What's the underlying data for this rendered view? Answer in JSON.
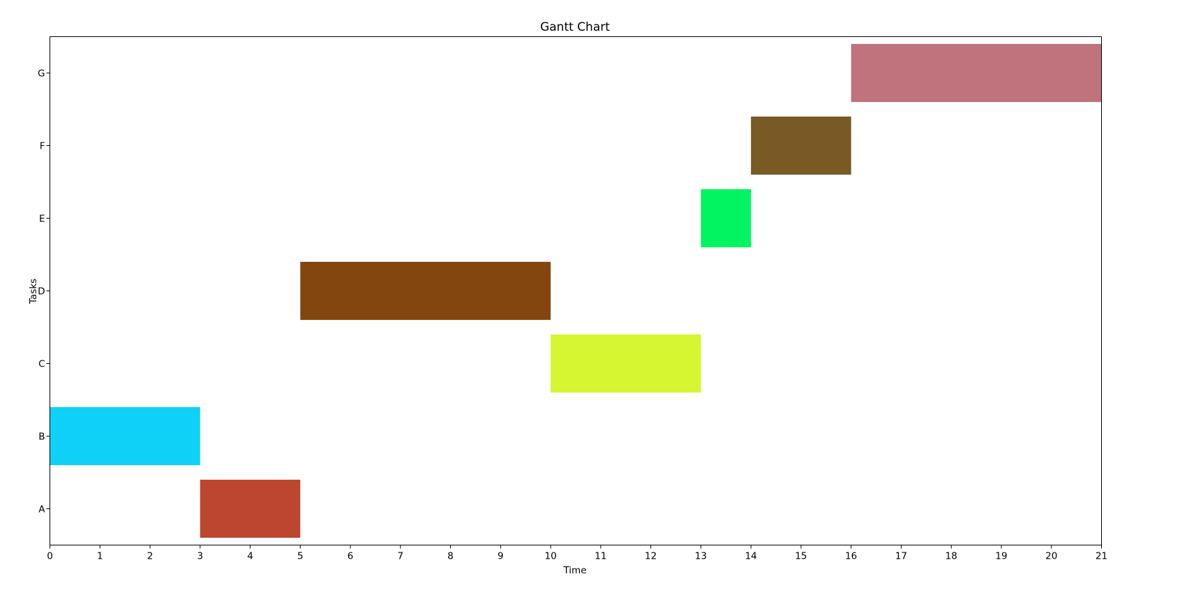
{
  "chart_data": {
    "type": "gantt",
    "title": "Gantt Chart",
    "xlabel": "Time",
    "ylabel": "Tasks",
    "xlim": [
      0,
      21
    ],
    "x_ticks": [
      0,
      1,
      2,
      3,
      4,
      5,
      6,
      7,
      8,
      9,
      10,
      11,
      12,
      13,
      14,
      15,
      16,
      17,
      18,
      19,
      20,
      21
    ],
    "categories": [
      "A",
      "B",
      "C",
      "D",
      "E",
      "F",
      "G"
    ],
    "tasks": [
      {
        "task": "A",
        "start": 3,
        "end": 5,
        "color": "#bd462f"
      },
      {
        "task": "B",
        "start": 0,
        "end": 3,
        "color": "#0fd0f6"
      },
      {
        "task": "C",
        "start": 10,
        "end": 13,
        "color": "#d5f631"
      },
      {
        "task": "D",
        "start": 5,
        "end": 10,
        "color": "#83460f"
      },
      {
        "task": "E",
        "start": 13,
        "end": 14,
        "color": "#02f560"
      },
      {
        "task": "F",
        "start": 14,
        "end": 16,
        "color": "#795924"
      },
      {
        "task": "G",
        "start": 16,
        "end": 21,
        "color": "#c0727d"
      }
    ],
    "grid": false,
    "legend": "none"
  }
}
